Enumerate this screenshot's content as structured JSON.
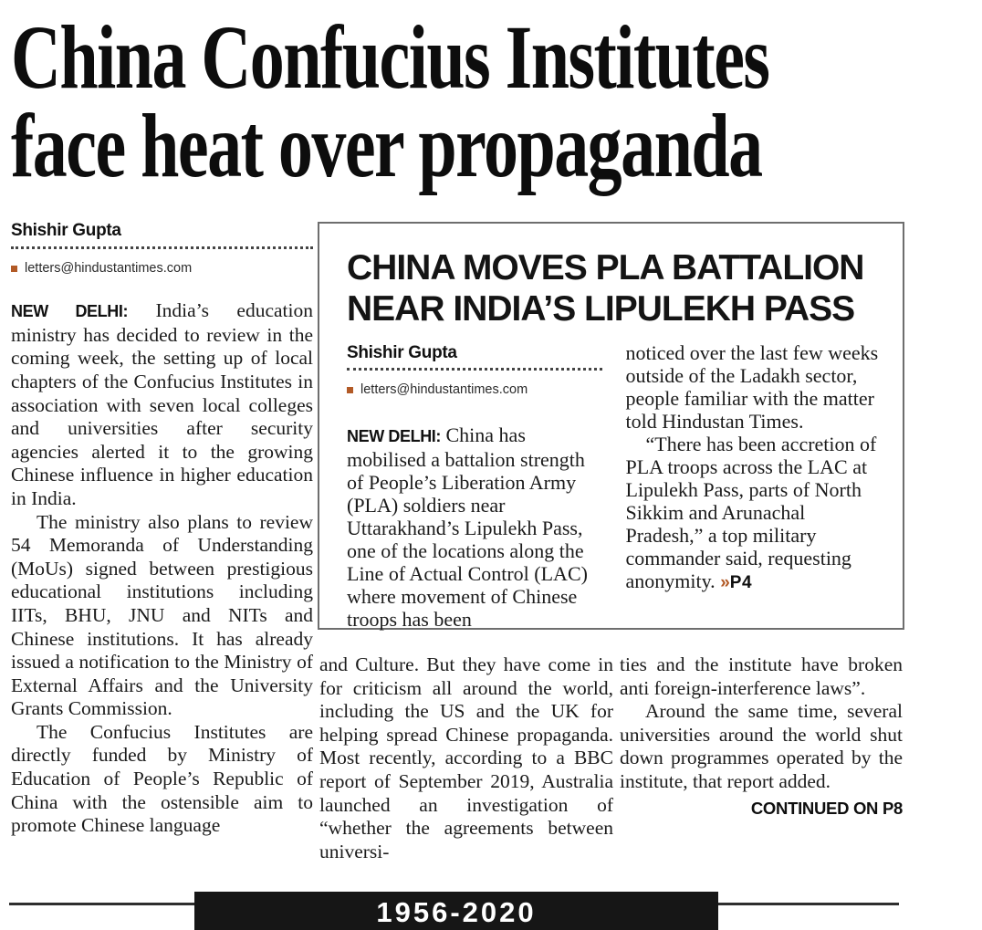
{
  "colors": {
    "accent_orange": "#b25a26",
    "ink": "#1b1b1b",
    "bar_black": "#161616"
  },
  "main_article": {
    "headline": {
      "line1": "China Confucius Institutes",
      "line2": "face heat over propaganda"
    },
    "byline": "Shishir Gupta",
    "email": "letters@hindustantimes.com",
    "dateline": "NEW DELHI:",
    "col1_p1": "India’s education ministry has decided to review in the coming week, the setting up of local chapters of the Confucius Institutes in association with seven local colleges and universities after security agencies alerted it to the growing Chinese influence in higher education in India.",
    "col1_p2": "The ministry also plans to review 54 Memoranda of Understanding (MoUs) signed between prestigious educational institutions including IITs, BHU, JNU and NITs and Chinese institutions. It has already issued a notification to the Ministry of External Affairs and the University Grants Commission.",
    "col1_p3": "The Confucius Institutes are directly funded by Ministry of Education of People’s Republic of China with the ostensible aim to promote Chinese language",
    "col2_p1": "and Culture. But they have come in for criticism all around the world, including the US and the UK for helping spread Chinese propaganda. Most recently, according to a BBC report of September 2019, Australia launched an investigation of “whether the agreements between universi-",
    "col3_p1": "ties and the institute have broken anti foreign-interference laws”.",
    "col3_p2": "Around the same time, several universities around the world shut down programmes operated by the institute, that report added.",
    "continued": "CONTINUED ON P8"
  },
  "box_article": {
    "headline": {
      "line1": "CHINA MOVES PLA BATTALION",
      "line2": "NEAR INDIA’S LIPULEKH PASS"
    },
    "byline": "Shishir Gupta",
    "email": "letters@hindustantimes.com",
    "dateline": "NEW DELHI:",
    "col_left": "China has mobilised a battalion strength of People’s Liberation Army (PLA) soldiers near Uttarakhand’s Lipulekh Pass, one of the locations along the Line of Actual Control (LAC) where movement of Chinese troops has been",
    "col_right_p1": "noticed over the last few weeks outside of the Ladakh sector, people familiar with the matter told Hindustan Times.",
    "col_right_p2": "“There has been accretion of PLA troops across the LAC at Lipulekh Pass, parts of North Sikkim and Arunachal Pradesh,” a top military commander said, requesting anonymity. ",
    "page_ref_marker": "»",
    "page_ref": "P4"
  },
  "footer": {
    "years": "1956-2020"
  }
}
